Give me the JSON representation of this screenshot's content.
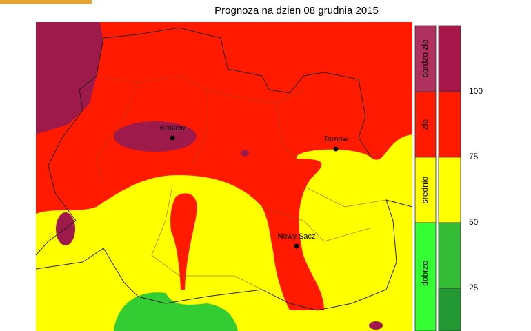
{
  "header": {
    "title": "Prognoza na dzien  08 grudnia 2015"
  },
  "cities": [
    {
      "label": "Krakow"
    },
    {
      "label": "Tarnow"
    },
    {
      "label": "Nowy Sacz"
    }
  ],
  "legend": {
    "classes": [
      "bardzo zle",
      "zle",
      "srednio",
      "dobrze"
    ],
    "ticks": [
      100,
      75,
      50,
      25
    ]
  }
}
